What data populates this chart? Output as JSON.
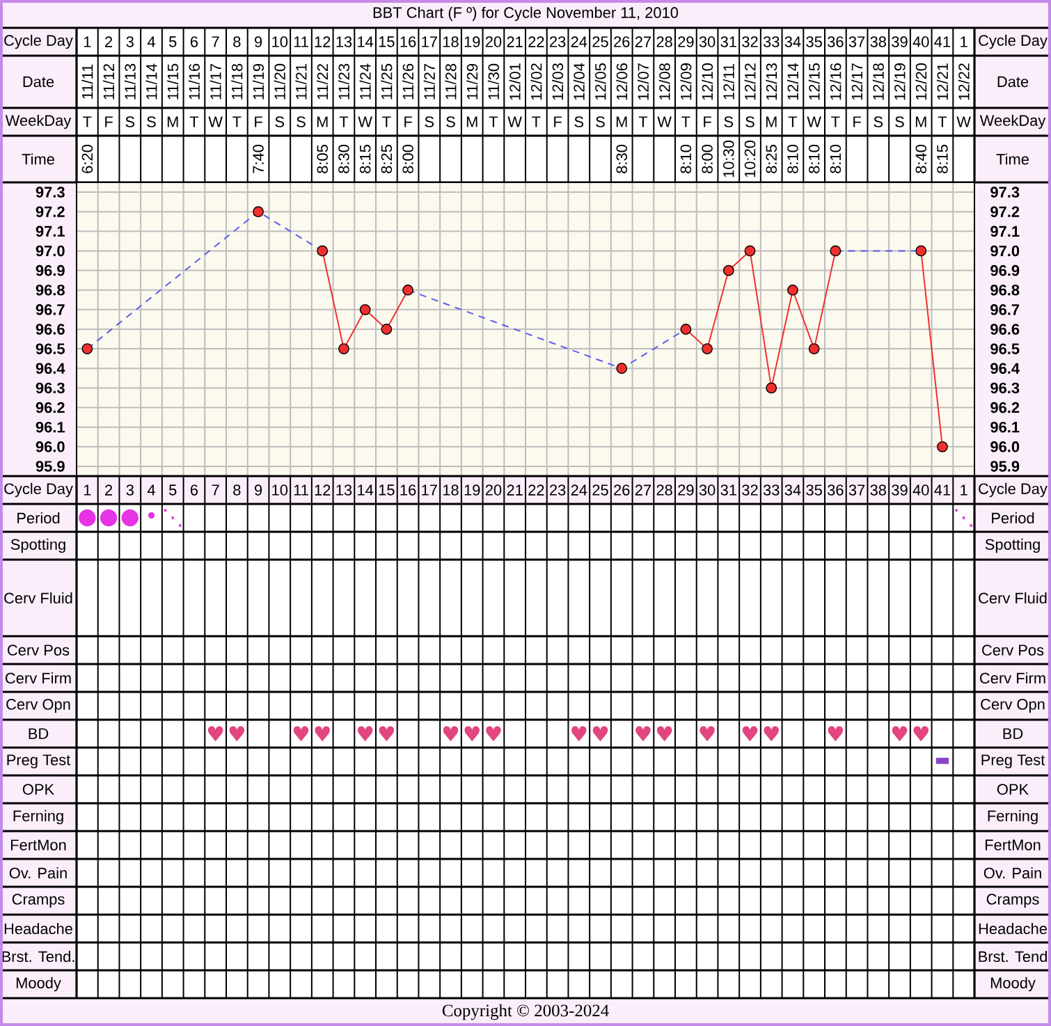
{
  "chart_data": [
    {
      "type": "heatmap",
      "title": "BBT Chart (F º) for Cycle November 11, 2010",
      "grid": true,
      "categories": [
        null,
        null,
        null,
        null,
        null,
        null,
        null,
        null,
        null,
        null,
        null,
        null,
        null,
        null,
        null,
        null,
        null,
        null,
        null,
        null,
        null,
        null,
        null,
        null,
        null,
        null,
        null,
        null,
        null,
        null,
        null,
        null,
        null,
        null,
        null,
        null,
        null,
        null,
        null,
        null,
        null,
        null
      ],
      "y_categories": [
        "Cycle Day",
        "Date",
        "WeekDay",
        "Time"
      ],
      "y2_categories": [
        "Cycle Day",
        "Date",
        "WeekDay",
        "Time"
      ],
      "cells": [
        [
          null,
          null,
          null,
          null,
          null,
          null,
          null,
          null,
          null,
          null,
          null,
          null,
          null,
          null,
          null,
          null,
          null,
          null,
          null,
          null,
          null,
          null,
          null,
          null,
          null,
          null,
          null,
          null,
          null,
          null,
          null,
          null,
          null,
          null,
          null,
          null,
          null,
          null,
          null,
          null,
          null,
          null
        ],
        [
          null,
          null,
          null,
          null,
          null,
          null,
          null,
          null,
          null,
          null,
          null,
          null,
          null,
          null,
          null,
          null,
          null,
          null,
          null,
          null,
          null,
          null,
          null,
          null,
          null,
          null,
          null,
          null,
          null,
          null,
          null,
          null,
          null,
          null,
          null,
          null,
          null,
          null,
          null,
          null,
          null,
          null
        ],
        [
          null,
          null,
          null,
          null,
          null,
          null,
          null,
          null,
          null,
          null,
          null,
          null,
          null,
          null,
          null,
          null,
          null,
          null,
          null,
          null,
          null,
          null,
          null,
          null,
          null,
          null,
          null,
          null,
          null,
          null,
          null,
          null,
          null,
          null,
          null,
          null,
          null,
          null,
          null,
          null,
          null,
          null
        ],
        [
          null,
          null,
          null,
          null,
          null,
          null,
          null,
          null,
          null,
          null,
          null,
          null,
          null,
          null,
          null,
          null,
          null,
          null,
          null,
          null,
          null,
          null,
          null,
          null,
          null,
          null,
          null,
          null,
          null,
          null,
          null,
          null,
          null,
          null,
          null,
          null,
          null,
          null,
          null,
          null,
          null,
          null
        ]
      ],
      "cell_labels": [
        [
          "1",
          "2",
          "3",
          "4",
          "5",
          "6",
          "7",
          "8",
          "9",
          "10",
          "11",
          "12",
          "13",
          "14",
          "15",
          "16",
          "17",
          "18",
          "19",
          "20",
          "21",
          "22",
          "23",
          "24",
          "25",
          "26",
          "27",
          "28",
          "29",
          "30",
          "31",
          "32",
          "33",
          "34",
          "35",
          "36",
          "37",
          "38",
          "39",
          "40",
          "41",
          "1"
        ],
        [
          "11/11",
          "11/12",
          "11/13",
          "11/14",
          "11/15",
          "11/16",
          "11/17",
          "11/18",
          "11/19",
          "11/20",
          "11/21",
          "11/22",
          "11/23",
          "11/24",
          "11/25",
          "11/26",
          "11/27",
          "11/28",
          "11/29",
          "11/30",
          "12/01",
          "12/02",
          "12/03",
          "12/04",
          "12/05",
          "12/06",
          "12/07",
          "12/08",
          "12/09",
          "12/10",
          "12/11",
          "12/12",
          "12/13",
          "12/14",
          "12/15",
          "12/16",
          "12/17",
          "12/18",
          "12/19",
          "12/20",
          "12/21",
          "12/22"
        ],
        [
          "T",
          "F",
          "S",
          "S",
          "M",
          "T",
          "W",
          "T",
          "F",
          "S",
          "S",
          "M",
          "T",
          "W",
          "T",
          "F",
          "S",
          "S",
          "M",
          "T",
          "W",
          "T",
          "F",
          "S",
          "S",
          "M",
          "T",
          "W",
          "T",
          "F",
          "S",
          "S",
          "M",
          "T",
          "W",
          "T",
          "F",
          "S",
          "S",
          "M",
          "T",
          "W"
        ],
        [
          "6:20",
          null,
          null,
          null,
          null,
          null,
          null,
          null,
          "7:40",
          null,
          null,
          "8:05",
          "8:30",
          "8:15",
          "8:25",
          "8:00",
          null,
          null,
          null,
          null,
          null,
          null,
          null,
          null,
          null,
          "8:30",
          null,
          null,
          "8:10",
          "8:00",
          "10:30",
          "10:20",
          "8:25",
          "8:10",
          "8:10",
          "8:10",
          null,
          null,
          null,
          "8:40",
          "8:15",
          null
        ]
      ]
    },
    {
      "type": "line",
      "xlabel": "Cycle Day",
      "categories": [
        "1",
        "2",
        "3",
        "4",
        "5",
        "6",
        "7",
        "8",
        "9",
        "10",
        "11",
        "12",
        "13",
        "14",
        "15",
        "16",
        "17",
        "18",
        "19",
        "20",
        "21",
        "22",
        "23",
        "24",
        "25",
        "26",
        "27",
        "28",
        "29",
        "30",
        "31",
        "32",
        "33",
        "34",
        "35",
        "36",
        "37",
        "38",
        "39",
        "40",
        "41",
        "1"
      ],
      "ylim": [
        95.85,
        97.35
      ],
      "yticks": [
        95.9,
        {
          "value": 96,
          "label": "96.0"
        },
        96.1,
        96.2,
        96.3,
        96.4,
        96.5,
        96.6,
        96.7,
        96.8,
        96.9,
        {
          "value": 97,
          "label": "97.0"
        },
        97.1,
        97.2,
        97.3
      ],
      "y2lim": [
        95.85,
        97.35
      ],
      "y2ticks": [
        95.9,
        {
          "value": 96,
          "label": "96.0"
        },
        96.1,
        96.2,
        96.3,
        96.4,
        96.5,
        96.6,
        96.7,
        96.8,
        96.9,
        {
          "value": 97,
          "label": "97.0"
        },
        97.1,
        97.2,
        97.3
      ],
      "grid": true,
      "series": [
        {
          "color": "#f0302f",
          "marker": "circle",
          "line_style": "solid",
          "values": [
            96.5,
            null,
            null,
            null,
            null,
            null,
            null,
            null,
            97.2,
            null,
            null,
            97.0,
            96.5,
            96.7,
            96.6,
            96.8,
            null,
            null,
            null,
            null,
            null,
            null,
            null,
            null,
            null,
            96.4,
            null,
            null,
            96.6,
            96.5,
            96.9,
            97.0,
            96.3,
            96.8,
            96.5,
            97.0,
            null,
            null,
            null,
            97.0,
            96.0,
            null
          ]
        },
        {
          "color": "#5c5cf0",
          "marker": "none",
          "line_style": "dashed",
          "values": [
            96.5,
            null,
            null,
            null,
            null,
            null,
            null,
            null,
            97.2,
            null,
            null,
            97.0,
            null,
            null,
            null,
            null,
            null,
            null,
            null,
            null,
            null,
            null,
            null,
            null,
            null,
            null,
            null,
            null,
            null,
            null,
            null,
            null,
            null,
            null,
            null,
            null,
            null,
            null,
            null,
            null,
            null,
            null
          ]
        },
        {
          "color": "#5c5cf0",
          "marker": "none",
          "line_style": "dashed",
          "values": [
            null,
            null,
            null,
            null,
            null,
            null,
            null,
            null,
            null,
            null,
            null,
            null,
            null,
            null,
            null,
            96.8,
            null,
            null,
            null,
            null,
            null,
            null,
            null,
            null,
            null,
            96.4,
            null,
            null,
            96.6,
            null,
            null,
            null,
            null,
            null,
            null,
            null,
            null,
            null,
            null,
            null,
            null,
            null
          ]
        },
        {
          "color": "#5c5cf0",
          "marker": "none",
          "line_style": "dashed",
          "values": [
            null,
            null,
            null,
            null,
            null,
            null,
            null,
            null,
            null,
            null,
            null,
            null,
            null,
            null,
            null,
            null,
            null,
            null,
            null,
            null,
            null,
            null,
            null,
            null,
            null,
            null,
            null,
            null,
            null,
            null,
            null,
            null,
            null,
            null,
            null,
            97.0,
            null,
            null,
            null,
            97.0,
            null,
            null
          ]
        }
      ]
    },
    {
      "type": "heatmap",
      "grid": true,
      "categories": [
        null,
        null,
        null,
        null,
        null,
        null,
        null,
        null,
        null,
        null,
        null,
        null,
        null,
        null,
        null,
        null,
        null,
        null,
        null,
        null,
        null,
        null,
        null,
        null,
        null,
        null,
        null,
        null,
        null,
        null,
        null,
        null,
        null,
        null,
        null,
        null,
        null,
        null,
        null,
        null,
        null,
        null
      ],
      "y_categories": [
        "Period",
        "Spotting",
        "Cerv Fluid",
        "Cerv Pos",
        "Cerv Firm",
        "Cerv Opn",
        "BD",
        "Preg Test",
        "OPK",
        "Ferning",
        "FertMon",
        "Ov. Pain",
        "Cramps",
        "Headache",
        "Brst. Tend.",
        "Moody"
      ],
      "y2_categories": [
        "Period",
        "Spotting",
        "Cerv Fluid",
        "Cerv Pos",
        "Cerv Firm",
        "Cerv Opn",
        "BD",
        "Preg Test",
        "OPK",
        "Ferning",
        "FertMon",
        "Ov. Pain",
        "Cramps",
        "Headache",
        "Brst. Tend",
        "Moody"
      ],
      "colors": [
        "#e633e6",
        "#000000",
        "#000000",
        "#000000",
        "#000000",
        "#000000",
        "#e2457f",
        "#8a44c8",
        "#000000",
        "#000000",
        "#000000",
        "#000000",
        "#000000",
        "#000000",
        "#000000",
        "#000000"
      ],
      "cells": [
        [
          null,
          null,
          null,
          null,
          null,
          null,
          null,
          null,
          null,
          null,
          null,
          null,
          null,
          null,
          null,
          null,
          null,
          null,
          null,
          null,
          null,
          null,
          null,
          null,
          null,
          null,
          null,
          null,
          null,
          null,
          null,
          null,
          null,
          null,
          null,
          null,
          null,
          null,
          null,
          null,
          null,
          null
        ],
        [
          null,
          null,
          null,
          null,
          null,
          null,
          null,
          null,
          null,
          null,
          null,
          null,
          null,
          null,
          null,
          null,
          null,
          null,
          null,
          null,
          null,
          null,
          null,
          null,
          null,
          null,
          null,
          null,
          null,
          null,
          null,
          null,
          null,
          null,
          null,
          null,
          null,
          null,
          null,
          null,
          null,
          null
        ],
        [
          null,
          null,
          null,
          null,
          null,
          null,
          null,
          null,
          null,
          null,
          null,
          null,
          null,
          null,
          null,
          null,
          null,
          null,
          null,
          null,
          null,
          null,
          null,
          null,
          null,
          null,
          null,
          null,
          null,
          null,
          null,
          null,
          null,
          null,
          null,
          null,
          null,
          null,
          null,
          null,
          null,
          null
        ],
        [
          null,
          null,
          null,
          null,
          null,
          null,
          null,
          null,
          null,
          null,
          null,
          null,
          null,
          null,
          null,
          null,
          null,
          null,
          null,
          null,
          null,
          null,
          null,
          null,
          null,
          null,
          null,
          null,
          null,
          null,
          null,
          null,
          null,
          null,
          null,
          null,
          null,
          null,
          null,
          null,
          null,
          null
        ],
        [
          null,
          null,
          null,
          null,
          null,
          null,
          null,
          null,
          null,
          null,
          null,
          null,
          null,
          null,
          null,
          null,
          null,
          null,
          null,
          null,
          null,
          null,
          null,
          null,
          null,
          null,
          null,
          null,
          null,
          null,
          null,
          null,
          null,
          null,
          null,
          null,
          null,
          null,
          null,
          null,
          null,
          null
        ],
        [
          null,
          null,
          null,
          null,
          null,
          null,
          null,
          null,
          null,
          null,
          null,
          null,
          null,
          null,
          null,
          null,
          null,
          null,
          null,
          null,
          null,
          null,
          null,
          null,
          null,
          null,
          null,
          null,
          null,
          null,
          null,
          null,
          null,
          null,
          null,
          null,
          null,
          null,
          null,
          null,
          null,
          null
        ],
        [
          null,
          null,
          null,
          null,
          null,
          null,
          null,
          null,
          null,
          null,
          null,
          null,
          null,
          null,
          null,
          null,
          null,
          null,
          null,
          null,
          null,
          null,
          null,
          null,
          null,
          null,
          null,
          null,
          null,
          null,
          null,
          null,
          null,
          null,
          null,
          null,
          null,
          null,
          null,
          null,
          null,
          null
        ],
        [
          null,
          null,
          null,
          null,
          null,
          null,
          null,
          null,
          null,
          null,
          null,
          null,
          null,
          null,
          null,
          null,
          null,
          null,
          null,
          null,
          null,
          null,
          null,
          null,
          null,
          null,
          null,
          null,
          null,
          null,
          null,
          null,
          null,
          null,
          null,
          null,
          null,
          null,
          null,
          null,
          null,
          null
        ],
        [
          null,
          null,
          null,
          null,
          null,
          null,
          null,
          null,
          null,
          null,
          null,
          null,
          null,
          null,
          null,
          null,
          null,
          null,
          null,
          null,
          null,
          null,
          null,
          null,
          null,
          null,
          null,
          null,
          null,
          null,
          null,
          null,
          null,
          null,
          null,
          null,
          null,
          null,
          null,
          null,
          null,
          null
        ],
        [
          null,
          null,
          null,
          null,
          null,
          null,
          null,
          null,
          null,
          null,
          null,
          null,
          null,
          null,
          null,
          null,
          null,
          null,
          null,
          null,
          null,
          null,
          null,
          null,
          null,
          null,
          null,
          null,
          null,
          null,
          null,
          null,
          null,
          null,
          null,
          null,
          null,
          null,
          null,
          null,
          null,
          null
        ],
        [
          null,
          null,
          null,
          null,
          null,
          null,
          null,
          null,
          null,
          null,
          null,
          null,
          null,
          null,
          null,
          null,
          null,
          null,
          null,
          null,
          null,
          null,
          null,
          null,
          null,
          null,
          null,
          null,
          null,
          null,
          null,
          null,
          null,
          null,
          null,
          null,
          null,
          null,
          null,
          null,
          null,
          null
        ],
        [
          null,
          null,
          null,
          null,
          null,
          null,
          null,
          null,
          null,
          null,
          null,
          null,
          null,
          null,
          null,
          null,
          null,
          null,
          null,
          null,
          null,
          null,
          null,
          null,
          null,
          null,
          null,
          null,
          null,
          null,
          null,
          null,
          null,
          null,
          null,
          null,
          null,
          null,
          null,
          null,
          null,
          null
        ],
        [
          null,
          null,
          null,
          null,
          null,
          null,
          null,
          null,
          null,
          null,
          null,
          null,
          null,
          null,
          null,
          null,
          null,
          null,
          null,
          null,
          null,
          null,
          null,
          null,
          null,
          null,
          null,
          null,
          null,
          null,
          null,
          null,
          null,
          null,
          null,
          null,
          null,
          null,
          null,
          null,
          null,
          null
        ],
        [
          null,
          null,
          null,
          null,
          null,
          null,
          null,
          null,
          null,
          null,
          null,
          null,
          null,
          null,
          null,
          null,
          null,
          null,
          null,
          null,
          null,
          null,
          null,
          null,
          null,
          null,
          null,
          null,
          null,
          null,
          null,
          null,
          null,
          null,
          null,
          null,
          null,
          null,
          null,
          null,
          null,
          null
        ],
        [
          null,
          null,
          null,
          null,
          null,
          null,
          null,
          null,
          null,
          null,
          null,
          null,
          null,
          null,
          null,
          null,
          null,
          null,
          null,
          null,
          null,
          null,
          null,
          null,
          null,
          null,
          null,
          null,
          null,
          null,
          null,
          null,
          null,
          null,
          null,
          null,
          null,
          null,
          null,
          null,
          null,
          null
        ],
        [
          null,
          null,
          null,
          null,
          null,
          null,
          null,
          null,
          null,
          null,
          null,
          null,
          null,
          null,
          null,
          null,
          null,
          null,
          null,
          null,
          null,
          null,
          null,
          null,
          null,
          null,
          null,
          null,
          null,
          null,
          null,
          null,
          null,
          null,
          null,
          null,
          null,
          null,
          null,
          null,
          null,
          null
        ]
      ],
      "cell_labels": [
        [
          "●",
          "●",
          "●",
          "•",
          "⋱",
          null,
          null,
          null,
          null,
          null,
          null,
          null,
          null,
          null,
          null,
          null,
          null,
          null,
          null,
          null,
          null,
          null,
          null,
          null,
          null,
          null,
          null,
          null,
          null,
          null,
          null,
          null,
          null,
          null,
          null,
          null,
          null,
          null,
          null,
          null,
          null,
          "⋱"
        ],
        [
          null,
          null,
          null,
          null,
          null,
          null,
          null,
          null,
          null,
          null,
          null,
          null,
          null,
          null,
          null,
          null,
          null,
          null,
          null,
          null,
          null,
          null,
          null,
          null,
          null,
          null,
          null,
          null,
          null,
          null,
          null,
          null,
          null,
          null,
          null,
          null,
          null,
          null,
          null,
          null,
          null,
          null
        ],
        [
          null,
          null,
          null,
          null,
          null,
          null,
          null,
          null,
          null,
          null,
          null,
          null,
          null,
          null,
          null,
          null,
          null,
          null,
          null,
          null,
          null,
          null,
          null,
          null,
          null,
          null,
          null,
          null,
          null,
          null,
          null,
          null,
          null,
          null,
          null,
          null,
          null,
          null,
          null,
          null,
          null,
          null
        ],
        [
          null,
          null,
          null,
          null,
          null,
          null,
          null,
          null,
          null,
          null,
          null,
          null,
          null,
          null,
          null,
          null,
          null,
          null,
          null,
          null,
          null,
          null,
          null,
          null,
          null,
          null,
          null,
          null,
          null,
          null,
          null,
          null,
          null,
          null,
          null,
          null,
          null,
          null,
          null,
          null,
          null,
          null
        ],
        [
          null,
          null,
          null,
          null,
          null,
          null,
          null,
          null,
          null,
          null,
          null,
          null,
          null,
          null,
          null,
          null,
          null,
          null,
          null,
          null,
          null,
          null,
          null,
          null,
          null,
          null,
          null,
          null,
          null,
          null,
          null,
          null,
          null,
          null,
          null,
          null,
          null,
          null,
          null,
          null,
          null,
          null
        ],
        [
          null,
          null,
          null,
          null,
          null,
          null,
          null,
          null,
          null,
          null,
          null,
          null,
          null,
          null,
          null,
          null,
          null,
          null,
          null,
          null,
          null,
          null,
          null,
          null,
          null,
          null,
          null,
          null,
          null,
          null,
          null,
          null,
          null,
          null,
          null,
          null,
          null,
          null,
          null,
          null,
          null,
          null
        ],
        [
          null,
          null,
          null,
          null,
          null,
          null,
          "♥",
          "♥",
          null,
          null,
          "♥",
          "♥",
          null,
          "♥",
          "♥",
          null,
          null,
          "♥",
          "♥",
          "♥",
          null,
          null,
          null,
          "♥",
          "♥",
          null,
          "♥",
          "♥",
          null,
          "♥",
          null,
          "♥",
          "♥",
          null,
          null,
          "♥",
          null,
          null,
          "♥",
          "♥",
          null,
          null
        ],
        [
          null,
          null,
          null,
          null,
          null,
          null,
          null,
          null,
          null,
          null,
          null,
          null,
          null,
          null,
          null,
          null,
          null,
          null,
          null,
          null,
          null,
          null,
          null,
          null,
          null,
          null,
          null,
          null,
          null,
          null,
          null,
          null,
          null,
          null,
          null,
          null,
          null,
          null,
          null,
          null,
          "▬",
          null
        ],
        [
          null,
          null,
          null,
          null,
          null,
          null,
          null,
          null,
          null,
          null,
          null,
          null,
          null,
          null,
          null,
          null,
          null,
          null,
          null,
          null,
          null,
          null,
          null,
          null,
          null,
          null,
          null,
          null,
          null,
          null,
          null,
          null,
          null,
          null,
          null,
          null,
          null,
          null,
          null,
          null,
          null,
          null
        ],
        [
          null,
          null,
          null,
          null,
          null,
          null,
          null,
          null,
          null,
          null,
          null,
          null,
          null,
          null,
          null,
          null,
          null,
          null,
          null,
          null,
          null,
          null,
          null,
          null,
          null,
          null,
          null,
          null,
          null,
          null,
          null,
          null,
          null,
          null,
          null,
          null,
          null,
          null,
          null,
          null,
          null,
          null
        ],
        [
          null,
          null,
          null,
          null,
          null,
          null,
          null,
          null,
          null,
          null,
          null,
          null,
          null,
          null,
          null,
          null,
          null,
          null,
          null,
          null,
          null,
          null,
          null,
          null,
          null,
          null,
          null,
          null,
          null,
          null,
          null,
          null,
          null,
          null,
          null,
          null,
          null,
          null,
          null,
          null,
          null,
          null
        ],
        [
          null,
          null,
          null,
          null,
          null,
          null,
          null,
          null,
          null,
          null,
          null,
          null,
          null,
          null,
          null,
          null,
          null,
          null,
          null,
          null,
          null,
          null,
          null,
          null,
          null,
          null,
          null,
          null,
          null,
          null,
          null,
          null,
          null,
          null,
          null,
          null,
          null,
          null,
          null,
          null,
          null,
          null
        ],
        [
          null,
          null,
          null,
          null,
          null,
          null,
          null,
          null,
          null,
          null,
          null,
          null,
          null,
          null,
          null,
          null,
          null,
          null,
          null,
          null,
          null,
          null,
          null,
          null,
          null,
          null,
          null,
          null,
          null,
          null,
          null,
          null,
          null,
          null,
          null,
          null,
          null,
          null,
          null,
          null,
          null,
          null
        ],
        [
          null,
          null,
          null,
          null,
          null,
          null,
          null,
          null,
          null,
          null,
          null,
          null,
          null,
          null,
          null,
          null,
          null,
          null,
          null,
          null,
          null,
          null,
          null,
          null,
          null,
          null,
          null,
          null,
          null,
          null,
          null,
          null,
          null,
          null,
          null,
          null,
          null,
          null,
          null,
          null,
          null,
          null
        ],
        [
          null,
          null,
          null,
          null,
          null,
          null,
          null,
          null,
          null,
          null,
          null,
          null,
          null,
          null,
          null,
          null,
          null,
          null,
          null,
          null,
          null,
          null,
          null,
          null,
          null,
          null,
          null,
          null,
          null,
          null,
          null,
          null,
          null,
          null,
          null,
          null,
          null,
          null,
          null,
          null,
          null,
          null
        ],
        [
          null,
          null,
          null,
          null,
          null,
          null,
          null,
          null,
          null,
          null,
          null,
          null,
          null,
          null,
          null,
          null,
          null,
          null,
          null,
          null,
          null,
          null,
          null,
          null,
          null,
          null,
          null,
          null,
          null,
          null,
          null,
          null,
          null,
          null,
          null,
          null,
          null,
          null,
          null,
          null,
          null,
          null
        ]
      ],
      "annotations": [
        "Copyright © 2003-2024"
      ]
    }
  ]
}
